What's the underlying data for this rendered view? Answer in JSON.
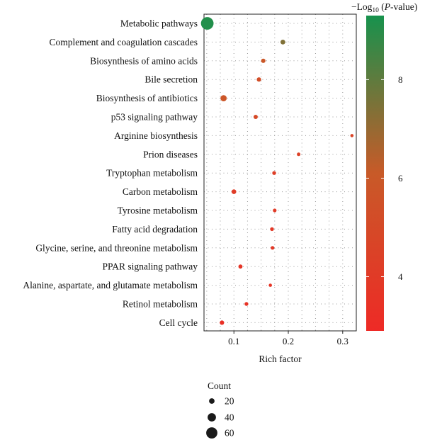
{
  "chart_data": {
    "type": "scatter",
    "title": "",
    "xlabel": "Rich factor",
    "ylabel": "",
    "xlim": [
      0.045,
      0.325
    ],
    "xticks": [
      "0.1",
      "0.2",
      "0.3"
    ],
    "xtick_values": [
      0.1,
      0.2,
      0.3
    ],
    "grid": true,
    "categories": [
      "Metabolic pathways",
      "Complement and coagulation cascades",
      "Biosynthesis of amino acids",
      "Bile secretion",
      "Biosynthesis of antibiotics",
      "p53 signaling pathway",
      "Arginine biosynthesis",
      "Prion diseases",
      "Tryptophan metabolism",
      "Carbon metabolism",
      "Tyrosine metabolism",
      "Fatty acid degradation",
      "Glycine, serine, and threonine metabolism",
      "PPAR signaling pathway",
      "Alanine, aspartate, and glutamate metabolism",
      "Retinol metabolism",
      "Cell cycle"
    ],
    "points": [
      {
        "category": "Metabolic pathways",
        "rich_factor": 0.051,
        "count": 70,
        "neg_log10_p": 9.1
      },
      {
        "category": "Complement and coagulation cascades",
        "rich_factor": 0.19,
        "count": 15,
        "neg_log10_p": 7.4
      },
      {
        "category": "Biosynthesis of amino acids",
        "rich_factor": 0.154,
        "count": 12,
        "neg_log10_p": 5.9
      },
      {
        "category": "Bile secretion",
        "rich_factor": 0.146,
        "count": 12,
        "neg_log10_p": 5.3
      },
      {
        "category": "Biosynthesis of antibiotics",
        "rich_factor": 0.081,
        "count": 25,
        "neg_log10_p": 5.8
      },
      {
        "category": "p53 signaling pathway",
        "rich_factor": 0.14,
        "count": 11,
        "neg_log10_p": 5.0
      },
      {
        "category": "Arginine biosynthesis",
        "rich_factor": 0.317,
        "count": 4,
        "neg_log10_p": 4.6
      },
      {
        "category": "Prion diseases",
        "rich_factor": 0.219,
        "count": 6,
        "neg_log10_p": 4.4
      },
      {
        "category": "Tryptophan metabolism",
        "rich_factor": 0.174,
        "count": 8,
        "neg_log10_p": 4.3
      },
      {
        "category": "Carbon metabolism",
        "rich_factor": 0.1,
        "count": 14,
        "neg_log10_p": 4.1
      },
      {
        "category": "Tyrosine metabolism",
        "rich_factor": 0.175,
        "count": 7,
        "neg_log10_p": 4.0
      },
      {
        "category": "Fatty acid degradation",
        "rich_factor": 0.17,
        "count": 8,
        "neg_log10_p": 3.9
      },
      {
        "category": "Glycine, serine, and threonine metabolism",
        "rich_factor": 0.171,
        "count": 7,
        "neg_log10_p": 3.8
      },
      {
        "category": "PPAR signaling pathway",
        "rich_factor": 0.112,
        "count": 10,
        "neg_log10_p": 3.7
      },
      {
        "category": "Alanine, aspartate, and glutamate metabolism",
        "rich_factor": 0.167,
        "count": 4,
        "neg_log10_p": 3.6
      },
      {
        "category": "Retinol metabolism",
        "rich_factor": 0.123,
        "count": 8,
        "neg_log10_p": 3.5
      },
      {
        "category": "Cell cycle",
        "rich_factor": 0.078,
        "count": 12,
        "neg_log10_p": 3.3
      }
    ],
    "colorbar": {
      "title_prefix": "−Log",
      "title_sub": "10",
      "title_open": " (",
      "title_italic": "P",
      "title_suffix": "-value)",
      "range": [
        2.9,
        9.3
      ],
      "ticks": [
        "4",
        "6",
        "8"
      ],
      "tick_values": [
        4,
        6,
        8
      ],
      "low_color": "#ee2a26",
      "high_color": "#17924d"
    },
    "size_legend": {
      "title": "Count",
      "entries": [
        "20",
        "40",
        "60"
      ],
      "values": [
        20,
        40,
        60
      ]
    }
  }
}
